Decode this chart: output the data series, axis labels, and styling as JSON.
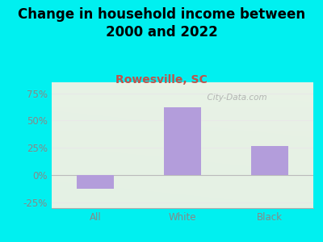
{
  "title": "Change in household income between\n2000 and 2022",
  "subtitle": "Rowesville, SC",
  "categories": [
    "All",
    "White",
    "Black"
  ],
  "values": [
    -12,
    62,
    27
  ],
  "bar_color": "#b39ddb",
  "title_fontsize": 12,
  "subtitle_fontsize": 10,
  "subtitle_color": "#c0524a",
  "tick_color": "#888888",
  "title_color": "#000000",
  "background_outer": "#00f0f0",
  "ylim": [
    -30,
    85
  ],
  "yticks": [
    -25,
    0,
    25,
    50,
    75
  ],
  "ytick_labels": [
    "-25%",
    "0%",
    "25%",
    "50%",
    "75%"
  ],
  "grid_color": "#e8e8e8",
  "watermark": "  City-Data.com"
}
